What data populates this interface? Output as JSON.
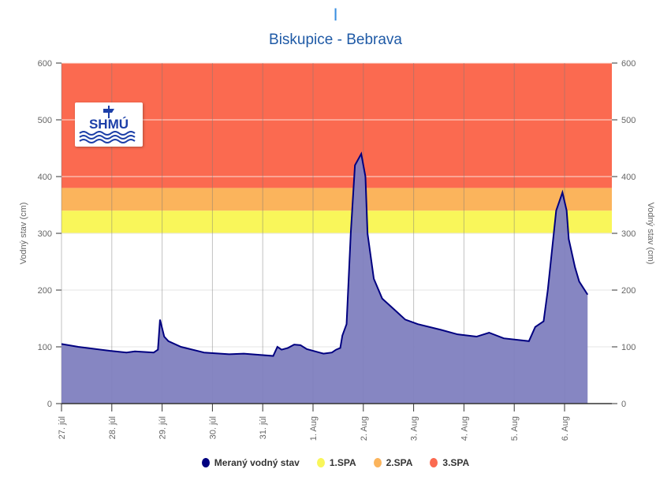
{
  "header": {
    "mark": "I",
    "title": "Biskupice - Bebrava"
  },
  "logo": {
    "text": "SHMÚ"
  },
  "chart_data": {
    "type": "area",
    "title": "Biskupice - Bebrava",
    "ylabel": "Vodný stav (cm)",
    "ylabel_right": "Vodný stav (cm)",
    "ylim": [
      0,
      600
    ],
    "yticks": [
      0,
      100,
      200,
      300,
      400,
      500,
      600
    ],
    "xticks": [
      {
        "date": "07-27",
        "label": "27. júl"
      },
      {
        "date": "07-28",
        "label": "28. júl"
      },
      {
        "date": "07-29",
        "label": "29. júl"
      },
      {
        "date": "07-30",
        "label": "30. júl"
      },
      {
        "date": "07-31",
        "label": "31. júl"
      },
      {
        "date": "08-01",
        "label": "1. Aug"
      },
      {
        "date": "08-02",
        "label": "2. Aug"
      },
      {
        "date": "08-03",
        "label": "3. Aug"
      },
      {
        "date": "08-04",
        "label": "4. Aug"
      },
      {
        "date": "08-05",
        "label": "5. Aug"
      },
      {
        "date": "08-06",
        "label": "6. Aug"
      }
    ],
    "xlim": [
      "07-27 00:00",
      "08-07 23:00"
    ],
    "grid": true,
    "legend_position": "bottom",
    "bands": [
      {
        "name": "1.SPA",
        "from": 300,
        "to": 340,
        "color": "#f9f65a"
      },
      {
        "name": "2.SPA",
        "from": 340,
        "to": 380,
        "color": "#fbb45c"
      },
      {
        "name": "3.SPA",
        "from": 380,
        "to": 600,
        "color": "#fb6a50"
      }
    ],
    "series": [
      {
        "name": "Meraný vodný stav",
        "color": "#000080",
        "fill": "#7f7fbf",
        "points": [
          [
            "07-27 00:00",
            105
          ],
          [
            "07-27 08:00",
            100
          ],
          [
            "07-27 23:00",
            93
          ],
          [
            "07-28 07:00",
            90
          ],
          [
            "07-28 11:00",
            92
          ],
          [
            "07-28 20:00",
            90
          ],
          [
            "07-28 22:00",
            95
          ],
          [
            "07-28 23:00",
            148
          ],
          [
            "07-29 01:00",
            118
          ],
          [
            "07-29 03:00",
            110
          ],
          [
            "07-29 09:00",
            100
          ],
          [
            "07-29 20:00",
            90
          ],
          [
            "07-30 08:00",
            87
          ],
          [
            "07-30 15:00",
            88
          ],
          [
            "07-31 05:00",
            84
          ],
          [
            "07-31 07:00",
            100
          ],
          [
            "07-31 09:00",
            95
          ],
          [
            "07-31 12:00",
            98
          ],
          [
            "07-31 15:00",
            104
          ],
          [
            "07-31 18:00",
            103
          ],
          [
            "07-31 21:00",
            96
          ],
          [
            "08-01 03:00",
            90
          ],
          [
            "08-01 05:00",
            88
          ],
          [
            "08-01 09:00",
            90
          ],
          [
            "08-01 11:00",
            95
          ],
          [
            "08-01 13:00",
            98
          ],
          [
            "08-01 14:00",
            120
          ],
          [
            "08-01 16:00",
            140
          ],
          [
            "08-01 18:00",
            300
          ],
          [
            "08-01 20:00",
            420
          ],
          [
            "08-01 23:00",
            440
          ],
          [
            "08-02 01:00",
            400
          ],
          [
            "08-02 02:00",
            300
          ],
          [
            "08-02 05:00",
            220
          ],
          [
            "08-02 09:00",
            185
          ],
          [
            "08-02 15:00",
            165
          ],
          [
            "08-02 20:00",
            148
          ],
          [
            "08-03 02:00",
            140
          ],
          [
            "08-03 13:00",
            130
          ],
          [
            "08-03 21:00",
            122
          ],
          [
            "08-04 06:00",
            118
          ],
          [
            "08-04 12:00",
            125
          ],
          [
            "08-04 19:00",
            115
          ],
          [
            "08-05 07:00",
            110
          ],
          [
            "08-05 10:00",
            135
          ],
          [
            "08-05 14:00",
            145
          ],
          [
            "08-05 16:00",
            200
          ],
          [
            "08-05 20:00",
            340
          ],
          [
            "08-05 23:00",
            372
          ],
          [
            "08-06 01:00",
            340
          ],
          [
            "08-06 02:00",
            290
          ],
          [
            "08-06 05:00",
            240
          ],
          [
            "08-06 07:00",
            215
          ],
          [
            "08-06 11:00",
            192
          ]
        ]
      }
    ]
  }
}
